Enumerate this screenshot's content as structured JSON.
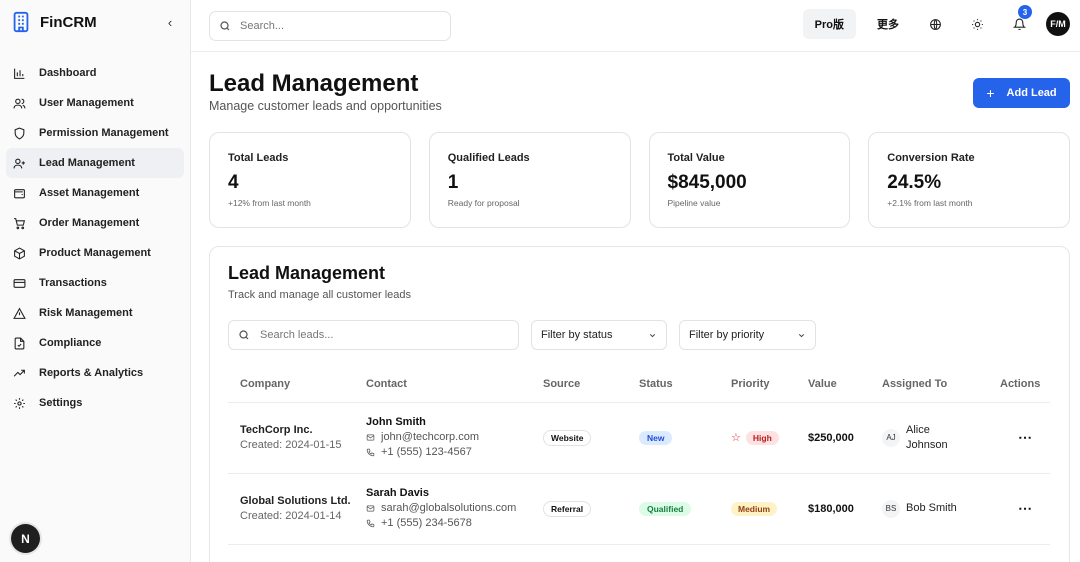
{
  "app": {
    "name": "FinCRM"
  },
  "sidebar": {
    "collapse_icon": "chevron-left-icon",
    "items": [
      {
        "label": "Dashboard",
        "icon": "bar-chart-icon",
        "active": false
      },
      {
        "label": "User Management",
        "icon": "users-icon",
        "active": false
      },
      {
        "label": "Permission Management",
        "icon": "shield-icon",
        "active": false
      },
      {
        "label": "Lead Management",
        "icon": "user-plus-icon",
        "active": true
      },
      {
        "label": "Asset Management",
        "icon": "wallet-icon",
        "active": false
      },
      {
        "label": "Order Management",
        "icon": "cart-icon",
        "active": false
      },
      {
        "label": "Product Management",
        "icon": "package-icon",
        "active": false
      },
      {
        "label": "Transactions",
        "icon": "credit-card-icon",
        "active": false
      },
      {
        "label": "Risk Management",
        "icon": "alert-triangle-icon",
        "active": false
      },
      {
        "label": "Compliance",
        "icon": "file-check-icon",
        "active": false
      },
      {
        "label": "Reports & Analytics",
        "icon": "trending-up-icon",
        "active": false
      },
      {
        "label": "Settings",
        "icon": "gear-icon",
        "active": false
      }
    ],
    "footer_badge": "N"
  },
  "topbar": {
    "search_placeholder": "Search...",
    "pro_label": "Pro版",
    "more_label": "更多",
    "notification_count": "3",
    "avatar_initials": "F/M"
  },
  "page": {
    "title": "Lead Management",
    "subtitle": "Manage customer leads and opportunities",
    "add_button": "Add Lead"
  },
  "stats": [
    {
      "label": "Total Leads",
      "value": "4",
      "note": "+12% from last month"
    },
    {
      "label": "Qualified Leads",
      "value": "1",
      "note": "Ready for proposal"
    },
    {
      "label": "Total Value",
      "value": "$845,000",
      "note": "Pipeline value"
    },
    {
      "label": "Conversion Rate",
      "value": "24.5%",
      "note": "+2.1% from last month"
    }
  ],
  "panel": {
    "title": "Lead Management",
    "subtitle": "Track and manage all customer leads",
    "search_placeholder": "Search leads...",
    "status_filter": "Filter by status",
    "priority_filter": "Filter by priority"
  },
  "table": {
    "headers": [
      "Company",
      "Contact",
      "Source",
      "Status",
      "Priority",
      "Value",
      "Assigned To",
      "Actions"
    ],
    "rows": [
      {
        "company": "TechCorp Inc.",
        "created": "Created: 2024-01-15",
        "contact_name": "John Smith",
        "email": "john@techcorp.com",
        "phone": "+1 (555) 123-4567",
        "source": "Website",
        "status": "New",
        "priority": "High",
        "value": "$250,000",
        "assignee_initials": "AJ",
        "assignee": "Alice Johnson",
        "actions": "⋯"
      },
      {
        "company": "Global Solutions Ltd.",
        "created": "Created: 2024-01-14",
        "contact_name": "Sarah Davis",
        "email": "sarah@globalsolutions.com",
        "phone": "+1 (555) 234-5678",
        "source": "Referral",
        "status": "Qualified",
        "priority": "Medium",
        "value": "$180,000",
        "assignee_initials": "BS",
        "assignee": "Bob Smith",
        "actions": "⋯"
      }
    ]
  },
  "colors": {
    "accent": "#2563eb",
    "status_new_bg": "#dbeafe",
    "status_new_fg": "#1d4ed8",
    "status_qualified_bg": "#dcfce7",
    "status_qualified_fg": "#15803d",
    "priority_high_bg": "#fee2e2",
    "priority_high_fg": "#b91c1c",
    "priority_medium_bg": "#fef3c7",
    "priority_medium_fg": "#92400e"
  }
}
